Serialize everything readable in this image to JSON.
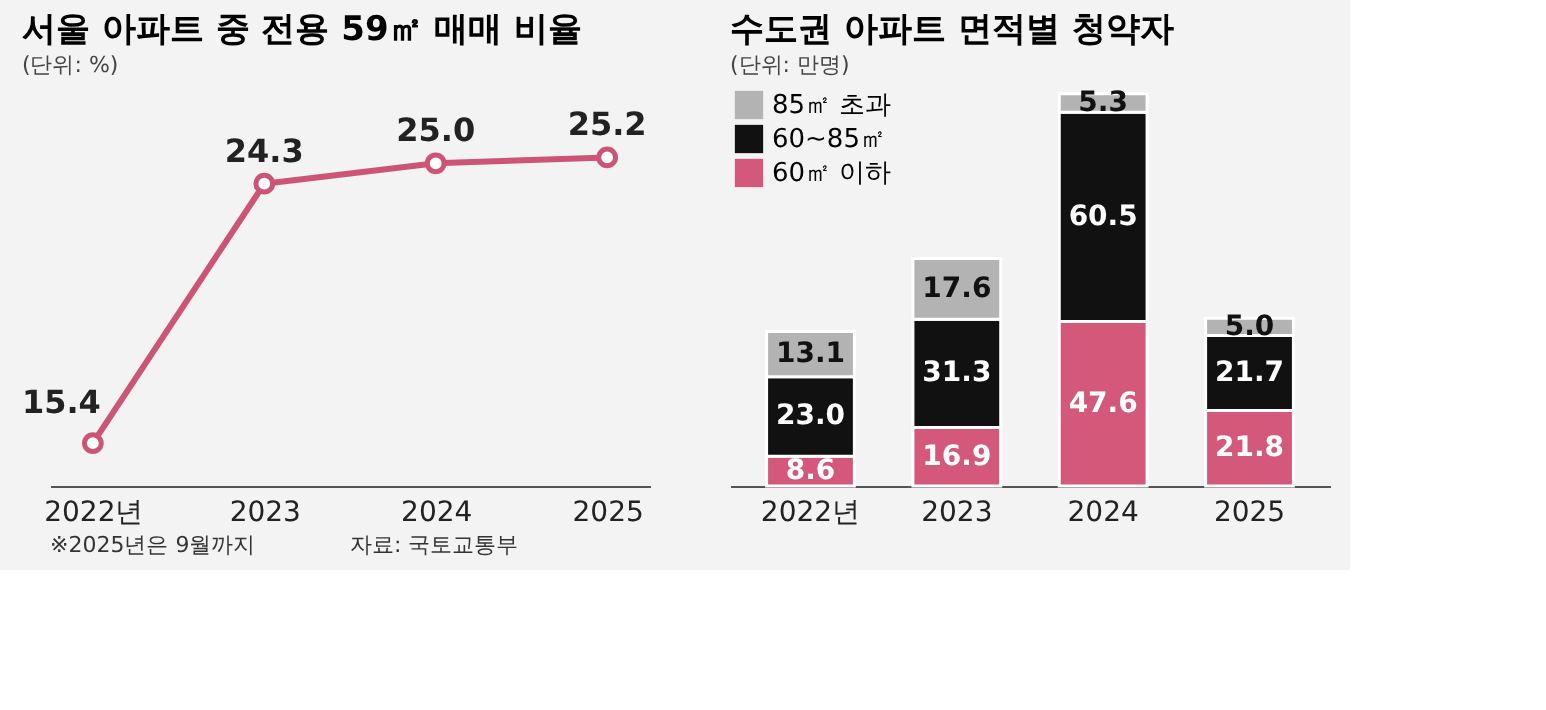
{
  "chart_data": [
    {
      "type": "line",
      "title": "서울 아파트 중 전용 59㎡ 매매 비율",
      "subtitle": "(단위: %)",
      "categories": [
        "2022년",
        "2023",
        "2024",
        "2025"
      ],
      "series": [
        {
          "color": "#cc5577",
          "values": [
            15.4,
            24.3,
            25.0,
            25.2
          ],
          "value_labels": [
            "15.4",
            "24.3",
            "25.0",
            "25.2"
          ]
        }
      ],
      "marker": "circle",
      "tick_labels": "x",
      "grid": false,
      "annotations": [
        "※2025년은 9월까지",
        "자료: 국토교통부"
      ]
    },
    {
      "type": "bar",
      "stacked": true,
      "title": "수도권 아파트 면적별 청약자",
      "subtitle": "(단위: 만명)",
      "categories": [
        "2022년",
        "2023",
        "2024",
        "2025"
      ],
      "series": [
        {
          "name": "60㎡ 이하",
          "color": "#d4587a",
          "values": [
            8.6,
            16.9,
            47.6,
            21.8
          ],
          "value_labels": [
            "8.6",
            "16.9",
            "47.6",
            "21.8"
          ]
        },
        {
          "name": "60~85㎡",
          "color": "#111111",
          "values": [
            23.0,
            31.3,
            60.5,
            21.7
          ],
          "value_labels": [
            "23.0",
            "31.3",
            "60.5",
            "21.7"
          ]
        },
        {
          "name": "85㎡ 초과",
          "color": "#b3b3b3",
          "values": [
            13.1,
            17.6,
            5.3,
            5.0
          ],
          "value_labels": [
            "13.1",
            "17.6",
            "5.3",
            "5.0"
          ]
        }
      ],
      "tick_labels": "x",
      "grid": false,
      "legend": "top left"
    }
  ]
}
